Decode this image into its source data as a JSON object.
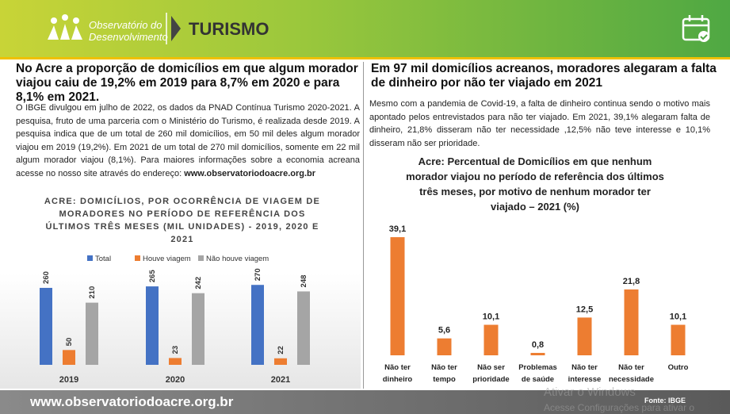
{
  "header": {
    "logo_line1": "Observatório do",
    "logo_line2": "Desenvolvimento",
    "section": "TURISMO"
  },
  "left": {
    "headline": "No Acre a proporção de domicílios em que algum morador viajou caiu de 19,2% em 2019 para 8,7% em 2020 e para 8,1% em 2021.",
    "paragraph": "O IBGE divulgou em julho de 2022, os dados da PNAD Contínua Turismo 2020-2021. A pesquisa, fruto de uma parceria com o Ministério do Turismo, é realizada desde 2019. A pesquisa indica que de um total de 260 mil domicílios, em 50 mil deles algum morador viajou em 2019 (19,2%). Em 2021 de um total de 270 mil domicílios, somente em 22 mil algum morador viajou (8,1%). Para maiores informações sobre a economia acreana acesse no nosso site através do endereço: ",
    "link": "www.observatoriodoacre.org.br"
  },
  "right": {
    "headline": "Em 97 mil domicílios acreanos, moradores alegaram a falta de dinheiro por não ter viajado em 2021",
    "paragraph": "Mesmo com a pandemia de Covid-19, a falta de dinheiro continua sendo o motivo mais apontado pelos entrevistados para não ter viajado. Em 2021, 39,1% alegaram falta de dinheiro, 21,8% disseram não ter necessidade ,12,5% não teve interesse e 10,1% disseram não ser prioridade."
  },
  "chart_data": [
    {
      "type": "grouped-bar",
      "title": "ACRE: DOMICÍLIOS, POR OCORRÊNCIA DE VIAGEM DE MORADORES NO PERÍODO DE REFERÊNCIA DOS ÚLTIMOS TRÊS MESES (MIL UNIDADES) - 2019, 2020 E 2021",
      "categories": [
        "2019",
        "2020",
        "2021"
      ],
      "series": [
        {
          "name": "Total",
          "color": "#4472c4",
          "values": [
            260,
            265,
            270
          ]
        },
        {
          "name": "Houve viagem",
          "color": "#ed7d31",
          "values": [
            50,
            23,
            22
          ]
        },
        {
          "name": "Não houve viagem",
          "color": "#a5a5a5",
          "values": [
            210,
            242,
            248
          ]
        }
      ],
      "ylim": [
        0,
        280
      ],
      "legend": "top"
    },
    {
      "type": "bar",
      "title": "Acre: Percentual de Domicílios em que nenhum morador viajou no período de referência dos últimos três meses, por motivo de nenhum morador ter viajado – 2021 (%)",
      "categories": [
        "Não ter\ndinheiro",
        "Não ter\ntempo",
        "Não ser\nprioridade",
        "Problemas\nde saúde",
        "Não ter\ninteresse",
        "Não ter\nnecessidade",
        "Outro"
      ],
      "values": [
        39.1,
        5.6,
        10.1,
        0.8,
        12.5,
        21.8,
        10.1
      ],
      "value_labels": [
        "39,1",
        "5,6",
        "10,1",
        "0,8",
        "12,5",
        "21,8",
        "10,1"
      ],
      "color": "#ed7d31",
      "ylim": [
        0,
        42
      ]
    }
  ],
  "footer": {
    "site": "www.observatoriodoacre.org.br",
    "source": "Fonte: IBGE"
  },
  "watermark": {
    "line1": "Ativar o Windows",
    "line2": "Acesse Configurações para ativar o"
  }
}
